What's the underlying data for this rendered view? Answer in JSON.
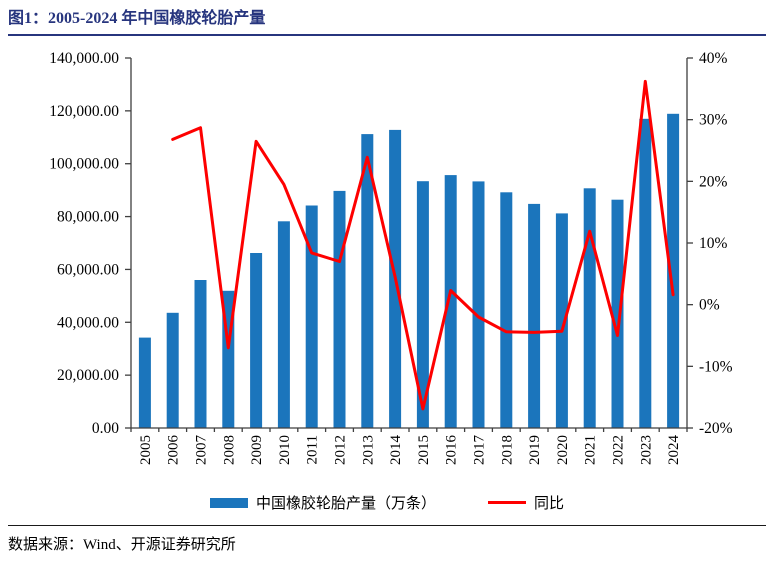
{
  "page": {
    "title": "图1：2005-2024 年中国橡胶轮胎产量",
    "source": "数据来源：Wind、开源证券研究所",
    "accent_color": "#27357e"
  },
  "chart_data": {
    "type": "bar+line combo",
    "title": "图1：2005-2024 年中国橡胶轮胎产量",
    "categories": [
      "2005",
      "2006",
      "2007",
      "2008",
      "2009",
      "2010",
      "2011",
      "2012",
      "2013",
      "2014",
      "2015",
      "2016",
      "2017",
      "2018",
      "2019",
      "2020",
      "2021",
      "2022",
      "2023",
      "2024"
    ],
    "series": [
      {
        "name": "中国橡胶轮胎产量（万条）",
        "type": "bar",
        "axis": "left",
        "color": "#1b75bc",
        "values": [
          34200,
          43600,
          56000,
          51900,
          66200,
          78200,
          84200,
          89700,
          111200,
          112800,
          93400,
          95700,
          93300,
          89200,
          84800,
          81200,
          90700,
          86400,
          117000,
          118900
        ]
      },
      {
        "name": "同比",
        "type": "line",
        "axis": "right",
        "color": "#fe0000",
        "values": [
          null,
          26.8,
          28.7,
          -7.0,
          26.5,
          19.5,
          8.4,
          7.0,
          23.9,
          4.5,
          -16.9,
          2.3,
          -2.0,
          -4.4,
          -4.5,
          -4.3,
          11.9,
          -5.0,
          36.2,
          1.6
        ]
      }
    ],
    "left_axis": {
      "min": 0,
      "max": 140000,
      "step": 20000,
      "tick_labels": [
        "0.00",
        "20,000.00",
        "40,000.00",
        "60,000.00",
        "80,000.00",
        "100,000.00",
        "120,000.00",
        "140,000.00"
      ]
    },
    "right_axis": {
      "min": -20,
      "max": 40,
      "step": 10,
      "tick_labels": [
        "-20%",
        "-10%",
        "0%",
        "10%",
        "20%",
        "30%",
        "40%"
      ]
    },
    "grid": false,
    "legend_position": "bottom",
    "axis_color": "#3f3f3f"
  }
}
